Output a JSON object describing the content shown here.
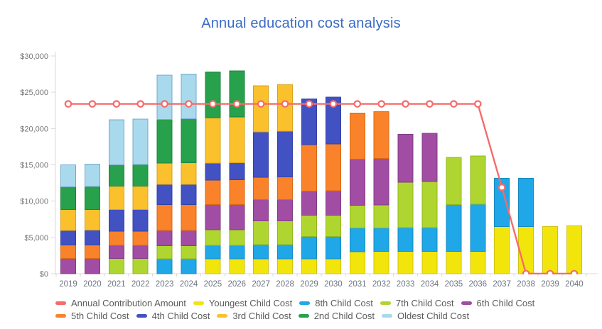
{
  "title": "Annual education cost analysis",
  "title_color": "#3B6AC4",
  "chart_data": {
    "type": "bar",
    "subtype": "stacked-bar-with-line-overlay",
    "title": "Annual education cost analysis",
    "xlabel": "",
    "ylabel": "",
    "grid": false,
    "legend_position": "bottom",
    "ylim": [
      0,
      30000
    ],
    "y_ticks": [
      "$0",
      "$5,000",
      "$10,000",
      "$15,000",
      "$20,000",
      "$25,000",
      "$30,000"
    ],
    "y_tick_values": [
      0,
      5000,
      10000,
      15000,
      20000,
      25000,
      30000
    ],
    "categories": [
      "2019",
      "2020",
      "2021",
      "2022",
      "2023",
      "2024",
      "2025",
      "2026",
      "2027",
      "2028",
      "2029",
      "2030",
      "2031",
      "2032",
      "2033",
      "2034",
      "2035",
      "2036",
      "2037",
      "2038",
      "2039",
      "2040"
    ],
    "bar_series": [
      {
        "name": "Youngest Child Cost",
        "color": "#F2E50C",
        "border": "#D1C214",
        "values": [
          0,
          0,
          0,
          0,
          0,
          0,
          2050,
          2050,
          2050,
          2050,
          2050,
          2050,
          3030,
          3060,
          3060,
          3060,
          3060,
          3060,
          6510,
          6510,
          6510,
          6600
        ]
      },
      {
        "name": "8th Child Cost",
        "color": "#1FA7E8",
        "border": "#1789C0",
        "values": [
          0,
          0,
          0,
          0,
          2050,
          2050,
          1850,
          1850,
          1960,
          1960,
          3100,
          3100,
          3250,
          3250,
          3270,
          3270,
          6480,
          6540,
          6610,
          6610,
          0,
          0
        ]
      },
      {
        "name": "7th Child Cost",
        "color": "#AFD630",
        "border": "#90B51F",
        "values": [
          0,
          0,
          2080,
          2080,
          1790,
          1790,
          2150,
          2150,
          3250,
          3250,
          2930,
          2930,
          3170,
          3170,
          6300,
          6350,
          6510,
          6600,
          0,
          0,
          0,
          0
        ]
      },
      {
        "name": "6th Child Cost",
        "color": "#A04DA3",
        "border": "#823C85",
        "values": [
          2080,
          2080,
          1830,
          1830,
          2120,
          2120,
          3490,
          3490,
          2930,
          2930,
          3320,
          3360,
          6350,
          6420,
          6580,
          6660,
          0,
          0,
          0,
          0,
          0,
          0
        ]
      },
      {
        "name": "5th Child Cost",
        "color": "#F9822A",
        "border": "#D66816",
        "values": [
          1860,
          1860,
          1950,
          1950,
          3580,
          3580,
          3360,
          3400,
          3100,
          3140,
          6380,
          6460,
          6350,
          6440,
          0,
          0,
          0,
          0,
          0,
          0,
          0,
          0
        ]
      },
      {
        "name": "4th Child Cost",
        "color": "#4252C3",
        "border": "#3342A3",
        "values": [
          2020,
          2060,
          2960,
          2960,
          2770,
          2770,
          2340,
          2360,
          6250,
          6300,
          6320,
          6420,
          0,
          0,
          0,
          0,
          0,
          0,
          0,
          0,
          0,
          0
        ]
      },
      {
        "name": "3rd Child Cost",
        "color": "#FBC12D",
        "border": "#D9A118",
        "values": [
          2860,
          2860,
          3230,
          3230,
          2930,
          2960,
          6260,
          6320,
          6350,
          6420,
          0,
          0,
          0,
          0,
          0,
          0,
          0,
          0,
          0,
          0,
          0,
          0
        ]
      },
      {
        "name": "2nd Child Cost",
        "color": "#27A14B",
        "border": "#1E853C",
        "values": [
          3170,
          3180,
          2950,
          2980,
          6030,
          6100,
          6280,
          6310,
          0,
          0,
          0,
          0,
          0,
          0,
          0,
          0,
          0,
          0,
          0,
          0,
          0,
          0
        ]
      },
      {
        "name": "Oldest Child Cost",
        "color": "#A9D9EC",
        "border": "#74A9CE",
        "values": [
          3010,
          3060,
          6200,
          6250,
          6090,
          6160,
          0,
          0,
          0,
          0,
          0,
          0,
          0,
          0,
          0,
          0,
          0,
          0,
          0,
          0,
          0,
          0
        ]
      }
    ],
    "line_series": {
      "name": "Annual Contribution Amount",
      "color": "#F56B6B",
      "marker": "open-circle",
      "values": [
        23400,
        23400,
        23400,
        23400,
        23400,
        23400,
        23400,
        23400,
        23400,
        23400,
        23400,
        23400,
        23400,
        23400,
        23400,
        23400,
        23400,
        23400,
        11890,
        0,
        0,
        0
      ]
    }
  },
  "legend": {
    "rows": [
      [
        {
          "label": "Annual Contribution Amount",
          "color": "#F56B6B"
        },
        {
          "label": "Youngest Child Cost",
          "color": "#F2E50C"
        },
        {
          "label": "8th Child Cost",
          "color": "#1FA7E8"
        },
        {
          "label": "7th Child Cost",
          "color": "#AFD630"
        },
        {
          "label": "6th Child Cost",
          "color": "#A04DA3"
        }
      ],
      [
        {
          "label": "5th Child Cost",
          "color": "#F9822A"
        },
        {
          "label": "4th Child Cost",
          "color": "#4252C3"
        },
        {
          "label": "3rd Child Cost",
          "color": "#FBC12D"
        },
        {
          "label": "2nd Child Cost",
          "color": "#27A14B"
        },
        {
          "label": "Oldest Child Cost",
          "color": "#A9D9EC"
        }
      ]
    ]
  },
  "axis": {
    "line_color": "#D9D9D9",
    "y_label_color": "#757575",
    "x_label_color": "#6B7480"
  }
}
